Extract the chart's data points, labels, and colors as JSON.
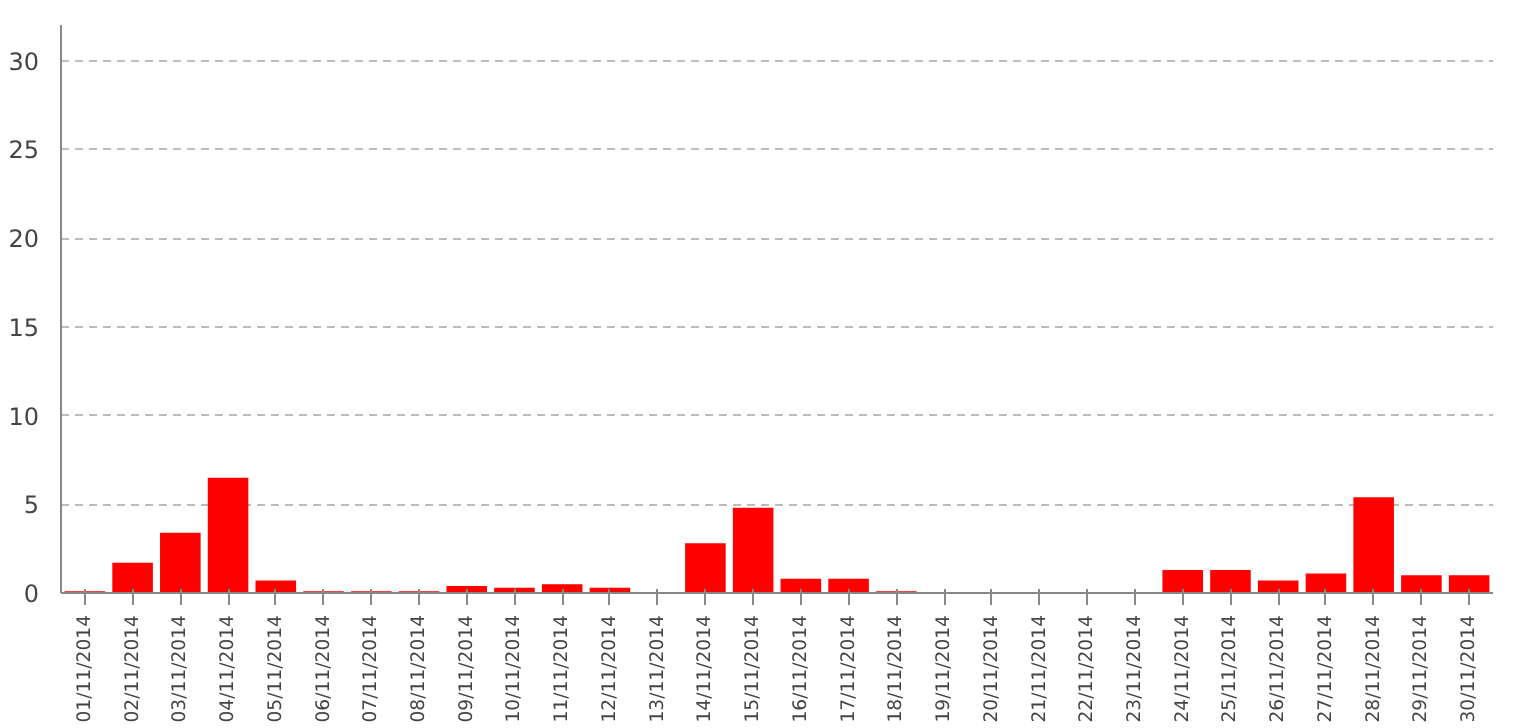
{
  "chart_data": {
    "type": "bar",
    "categories": [
      "01/11/2014",
      "02/11/2014",
      "03/11/2014",
      "04/11/2014",
      "05/11/2014",
      "06/11/2014",
      "07/11/2014",
      "08/11/2014",
      "09/11/2014",
      "10/11/2014",
      "11/11/2014",
      "12/11/2014",
      "13/11/2014",
      "14/11/2014",
      "15/11/2014",
      "16/11/2014",
      "17/11/2014",
      "18/11/2014",
      "19/11/2014",
      "20/11/2014",
      "21/11/2014",
      "22/11/2014",
      "23/11/2014",
      "24/11/2014",
      "25/11/2014",
      "26/11/2014",
      "27/11/2014",
      "28/11/2014",
      "29/11/2014",
      "30/11/2014"
    ],
    "values": [
      0.1,
      1.7,
      3.4,
      6.5,
      0.7,
      0.1,
      0.1,
      0.1,
      0.4,
      0.3,
      0.5,
      0.3,
      0,
      2.8,
      4.8,
      0.8,
      0.8,
      0.1,
      0,
      0,
      0,
      0,
      0,
      1.3,
      1.3,
      0.7,
      1.1,
      5.4,
      1.0,
      1.0
    ],
    "color": "#ff0000",
    "ylim": [
      0,
      32
    ],
    "yticks": [
      0,
      5,
      10,
      15,
      20,
      25,
      30
    ],
    "grid": "y"
  }
}
